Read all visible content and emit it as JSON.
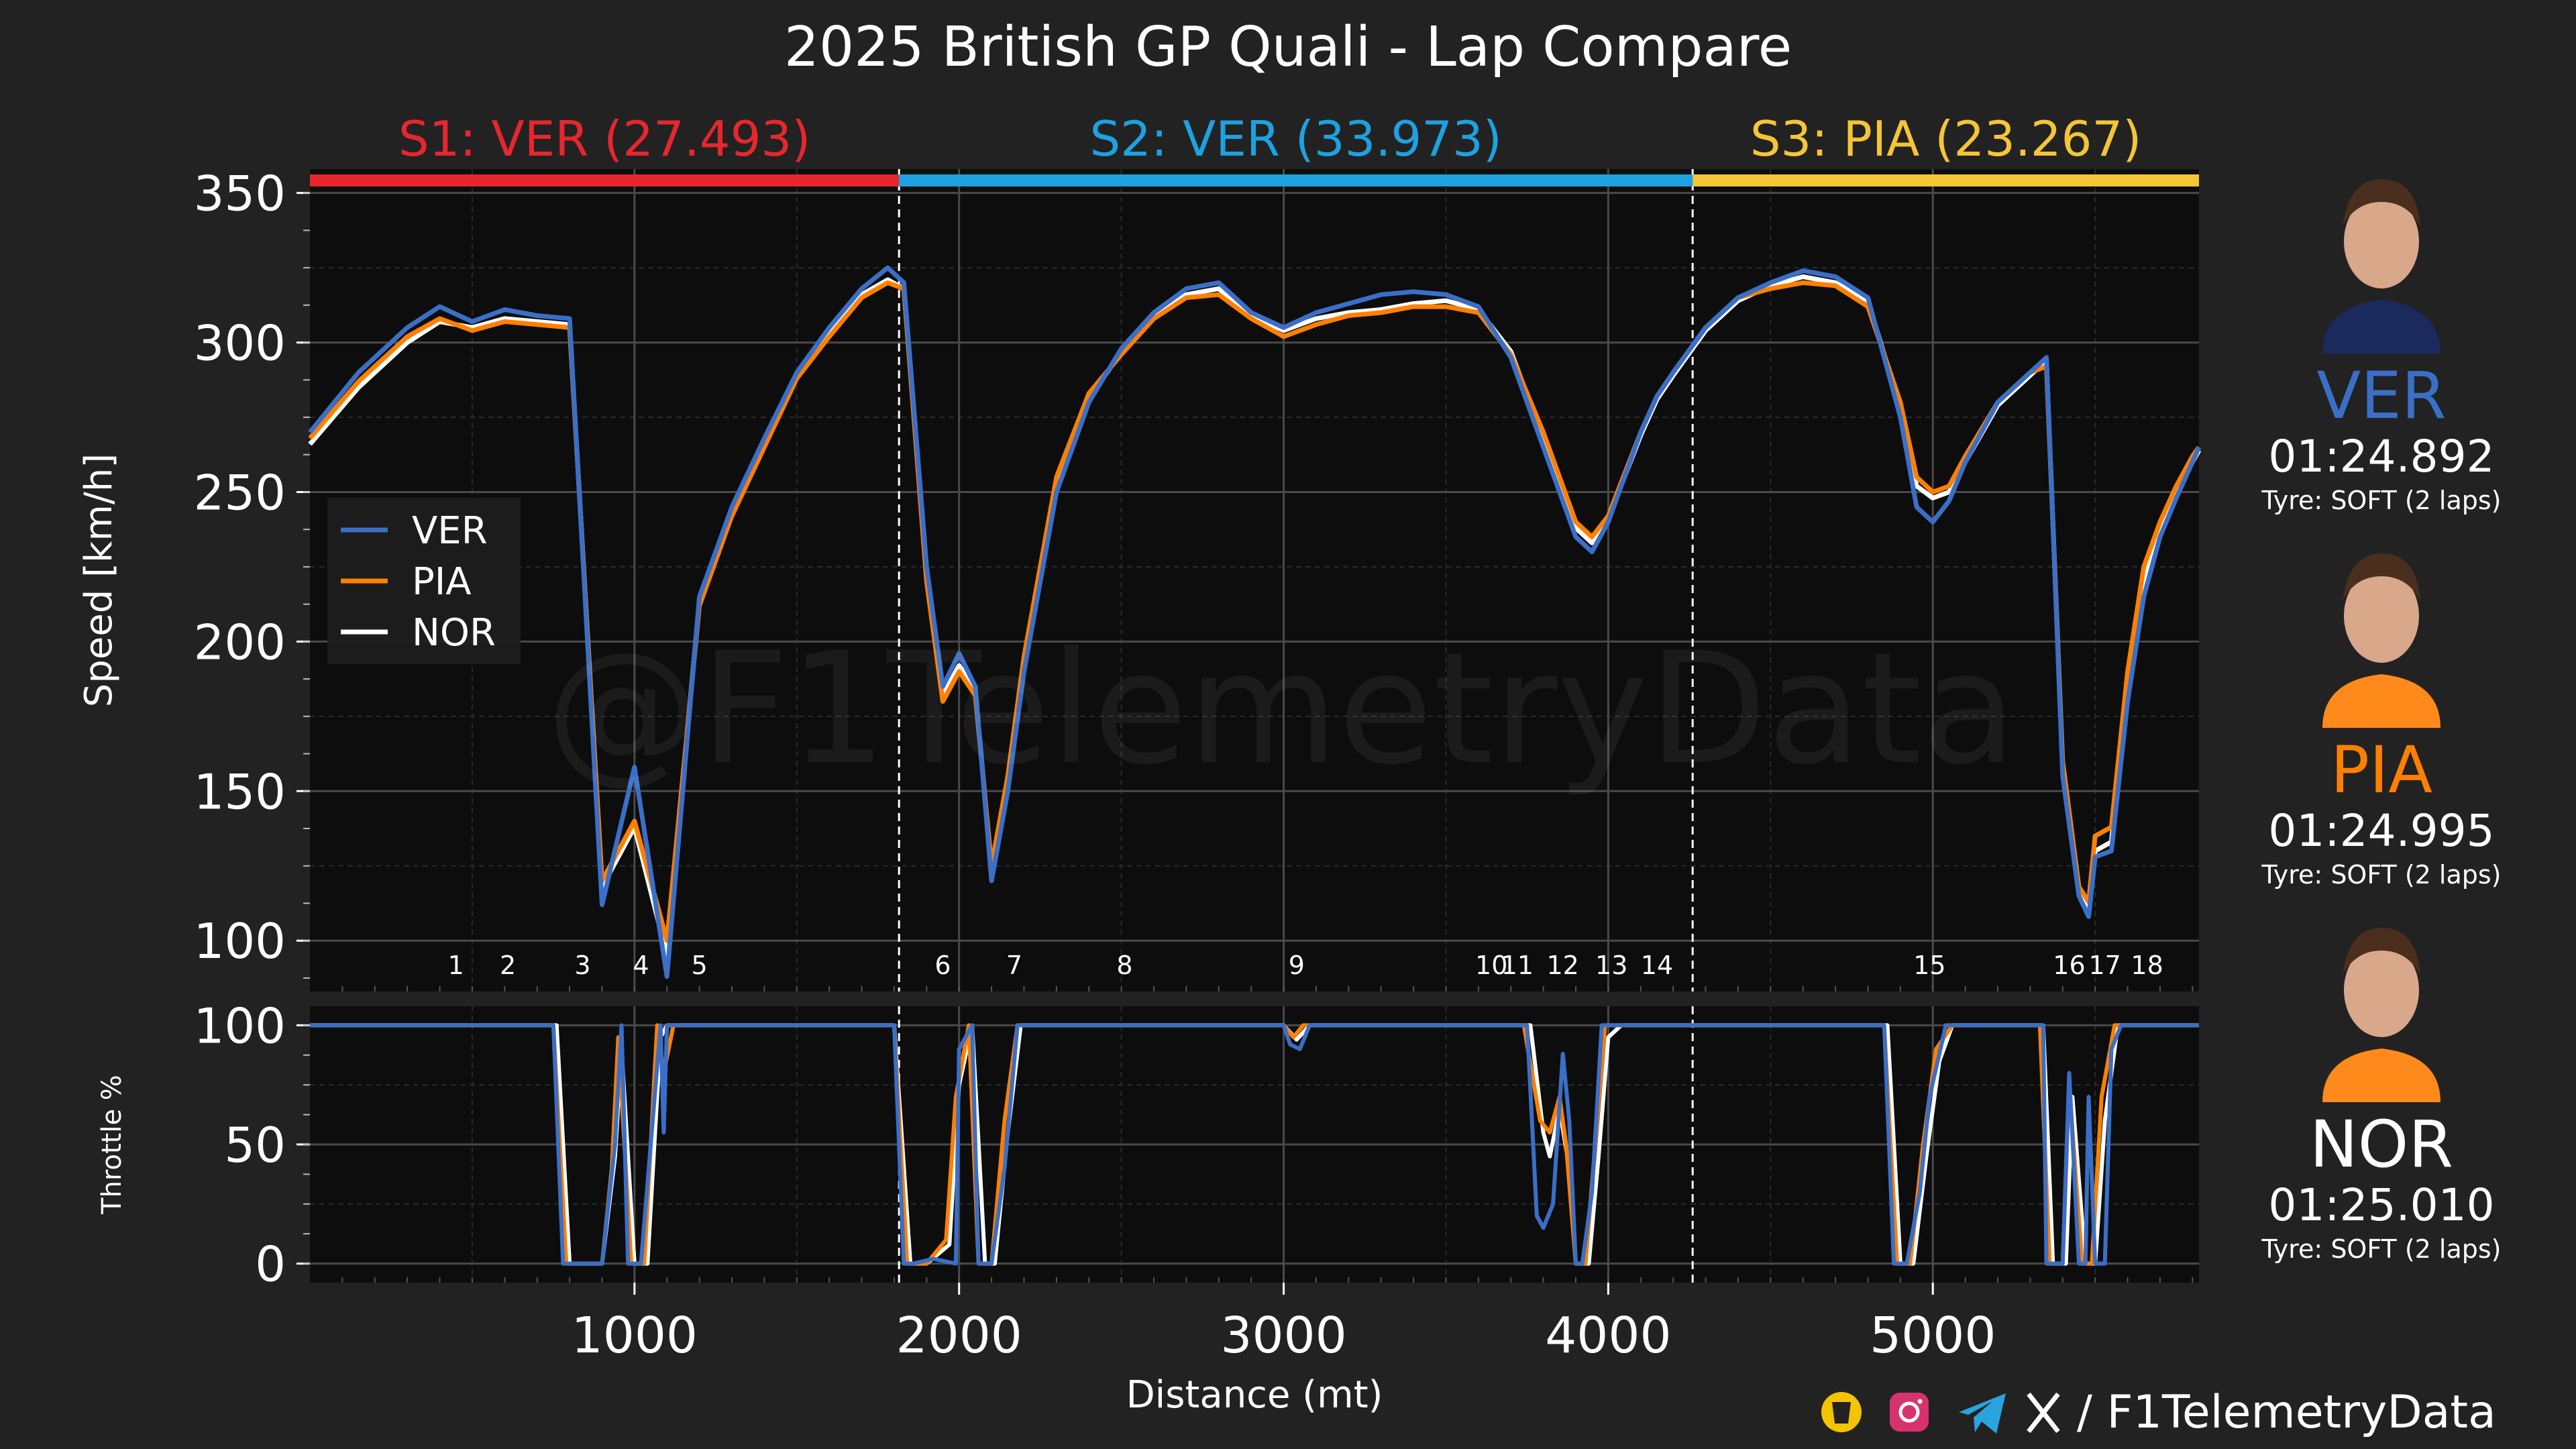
{
  "title": "2025 British GP Quali - Lap Compare",
  "sectors": [
    {
      "label": "S1: VER (27.493)",
      "color": "#e8262e",
      "start": 0,
      "end": 1815
    },
    {
      "label": "S2: VER (33.973)",
      "color": "#1da1e0",
      "start": 1815,
      "end": 4260
    },
    {
      "label": "S3: PIA (23.267)",
      "color": "#f5c537",
      "start": 4260,
      "end": 5820
    }
  ],
  "drivers": [
    {
      "code": "VER",
      "lap_time": "01:24.892",
      "tyre": "Tyre: SOFT (2 laps)",
      "color": "#3a6fc8",
      "photo": "driver-ver"
    },
    {
      "code": "PIA",
      "lap_time": "01:24.995",
      "tyre": "Tyre: SOFT (2 laps)",
      "color": "#ff8000",
      "photo": "driver-pia"
    },
    {
      "code": "NOR",
      "lap_time": "01:25.010",
      "tyre": "Tyre: SOFT (2 laps)",
      "color": "#ffffff",
      "photo": "driver-nor"
    }
  ],
  "watermark": "@F1TelemetryData",
  "footer": {
    "handle": "/ F1TelemetryData",
    "icons": [
      "coffee-icon",
      "instagram-icon",
      "telegram-icon",
      "x-icon"
    ]
  },
  "chart_data": [
    {
      "type": "line",
      "ylabel": "Speed [km/h]",
      "xlim": [
        0,
        5820
      ],
      "ylim": [
        83,
        358
      ],
      "yticks": [
        100,
        150,
        200,
        250,
        300,
        350
      ],
      "legend": "left-middle",
      "corners": [
        {
          "label": "1",
          "x": 450
        },
        {
          "label": "2",
          "x": 610
        },
        {
          "label": "3",
          "x": 840
        },
        {
          "label": "4",
          "x": 1020
        },
        {
          "label": "5",
          "x": 1200
        },
        {
          "label": "6",
          "x": 1950
        },
        {
          "label": "7",
          "x": 2170
        },
        {
          "label": "8",
          "x": 2510
        },
        {
          "label": "9",
          "x": 3040
        },
        {
          "label": "10",
          "x": 3640
        },
        {
          "label": "11",
          "x": 3720
        },
        {
          "label": "12",
          "x": 3860
        },
        {
          "label": "13",
          "x": 4010
        },
        {
          "label": "14",
          "x": 4150
        },
        {
          "label": "15",
          "x": 4990
        },
        {
          "label": "16",
          "x": 5420
        },
        {
          "label": "17",
          "x": 5530
        },
        {
          "label": "18",
          "x": 5660
        }
      ],
      "series": [
        {
          "name": "VER",
          "color": "#3a6fc8",
          "x": [
            0,
            150,
            300,
            400,
            500,
            600,
            700,
            800,
            900,
            1000,
            1100,
            1200,
            1300,
            1400,
            1500,
            1600,
            1700,
            1780,
            1830,
            1900,
            1950,
            2000,
            2050,
            2100,
            2150,
            2200,
            2300,
            2400,
            2500,
            2600,
            2700,
            2800,
            2900,
            3000,
            3100,
            3200,
            3300,
            3400,
            3500,
            3600,
            3700,
            3800,
            3850,
            3900,
            3950,
            4000,
            4050,
            4100,
            4150,
            4200,
            4300,
            4400,
            4500,
            4600,
            4700,
            4800,
            4900,
            4950,
            5000,
            5050,
            5100,
            5200,
            5300,
            5350,
            5400,
            5450,
            5480,
            5500,
            5550,
            5600,
            5650,
            5700,
            5750,
            5800,
            5820
          ],
          "y": [
            270,
            290,
            305,
            312,
            307,
            311,
            309,
            308,
            112,
            158,
            88,
            215,
            245,
            268,
            290,
            305,
            318,
            325,
            320,
            225,
            185,
            196,
            185,
            120,
            150,
            190,
            250,
            280,
            298,
            310,
            318,
            320,
            310,
            305,
            310,
            313,
            316,
            317,
            316,
            312,
            295,
            265,
            250,
            235,
            230,
            240,
            255,
            270,
            282,
            290,
            305,
            315,
            320,
            324,
            322,
            315,
            275,
            245,
            240,
            247,
            260,
            280,
            290,
            295,
            155,
            115,
            108,
            128,
            130,
            180,
            215,
            235,
            248,
            260,
            265
          ]
        },
        {
          "name": "PIA",
          "color": "#ff8000",
          "x": [
            0,
            150,
            300,
            400,
            500,
            600,
            700,
            800,
            900,
            1000,
            1100,
            1200,
            1300,
            1400,
            1500,
            1600,
            1700,
            1780,
            1830,
            1900,
            1950,
            2000,
            2050,
            2100,
            2150,
            2200,
            2300,
            2400,
            2500,
            2600,
            2700,
            2800,
            2900,
            3000,
            3100,
            3200,
            3300,
            3400,
            3500,
            3600,
            3700,
            3800,
            3850,
            3900,
            3950,
            4000,
            4050,
            4100,
            4150,
            4200,
            4300,
            4400,
            4500,
            4600,
            4700,
            4800,
            4900,
            4950,
            5000,
            5050,
            5100,
            5200,
            5300,
            5350,
            5400,
            5450,
            5480,
            5500,
            5550,
            5600,
            5650,
            5700,
            5750,
            5800,
            5820
          ],
          "y": [
            268,
            287,
            302,
            308,
            304,
            307,
            306,
            305,
            120,
            140,
            100,
            212,
            242,
            265,
            288,
            302,
            315,
            320,
            318,
            220,
            180,
            190,
            182,
            125,
            155,
            195,
            255,
            283,
            296,
            308,
            315,
            316,
            308,
            302,
            306,
            309,
            310,
            312,
            312,
            310,
            296,
            270,
            255,
            240,
            235,
            242,
            256,
            270,
            282,
            290,
            305,
            315,
            318,
            320,
            319,
            312,
            280,
            255,
            250,
            252,
            262,
            280,
            290,
            292,
            160,
            118,
            113,
            135,
            138,
            190,
            225,
            240,
            252,
            262,
            265
          ]
        },
        {
          "name": "NOR",
          "color": "#ffffff",
          "x": [
            0,
            150,
            300,
            400,
            500,
            600,
            700,
            800,
            900,
            1000,
            1100,
            1200,
            1300,
            1400,
            1500,
            1600,
            1700,
            1780,
            1830,
            1900,
            1950,
            2000,
            2050,
            2100,
            2150,
            2200,
            2300,
            2400,
            2500,
            2600,
            2700,
            2800,
            2900,
            3000,
            3100,
            3200,
            3300,
            3400,
            3500,
            3600,
            3700,
            3800,
            3850,
            3900,
            3950,
            4000,
            4050,
            4100,
            4150,
            4200,
            4300,
            4400,
            4500,
            4600,
            4700,
            4800,
            4900,
            4950,
            5000,
            5050,
            5100,
            5200,
            5300,
            5350,
            5400,
            5450,
            5480,
            5500,
            5550,
            5600,
            5650,
            5700,
            5750,
            5800,
            5820
          ],
          "y": [
            266,
            285,
            300,
            307,
            305,
            308,
            307,
            306,
            118,
            138,
            95,
            214,
            243,
            266,
            289,
            303,
            316,
            321,
            318,
            222,
            182,
            192,
            184,
            123,
            152,
            192,
            252,
            281,
            297,
            309,
            316,
            318,
            309,
            304,
            308,
            310,
            311,
            313,
            314,
            311,
            297,
            268,
            254,
            238,
            233,
            241,
            255,
            269,
            281,
            289,
            304,
            314,
            319,
            322,
            320,
            314,
            278,
            252,
            248,
            250,
            260,
            279,
            289,
            294,
            158,
            117,
            111,
            130,
            133,
            185,
            220,
            238,
            250,
            260,
            264
          ]
        }
      ]
    },
    {
      "type": "line",
      "ylabel": "Throttle %",
      "xlabel": "Distance (mt)",
      "xlim": [
        0,
        5820
      ],
      "ylim": [
        -8,
        108
      ],
      "yticks": [
        0,
        50,
        100
      ],
      "xticks": [
        1000,
        2000,
        3000,
        4000,
        5000
      ],
      "series": [
        {
          "name": "VER",
          "color": "#3a6fc8",
          "x": [
            0,
            750,
            780,
            900,
            940,
            960,
            980,
            1020,
            1080,
            1090,
            1100,
            1120,
            1800,
            1830,
            1860,
            1920,
            1990,
            2000,
            2040,
            2060,
            2100,
            2140,
            2180,
            2220,
            3000,
            3020,
            3050,
            3080,
            3750,
            3780,
            3800,
            3830,
            3860,
            3880,
            3900,
            3920,
            3950,
            3980,
            4000,
            4020,
            4050,
            4850,
            4880,
            4920,
            4960,
            4990,
            5040,
            5060,
            5080,
            5300,
            5340,
            5350,
            5400,
            5420,
            5450,
            5470,
            5480,
            5500,
            5530,
            5550,
            5580,
            5820
          ],
          "y": [
            100,
            100,
            0,
            0,
            50,
            100,
            0,
            0,
            100,
            55,
            100,
            100,
            100,
            0,
            0,
            2,
            0,
            90,
            100,
            0,
            0,
            40,
            100,
            100,
            100,
            92,
            90,
            100,
            100,
            20,
            15,
            25,
            88,
            60,
            0,
            0,
            30,
            100,
            100,
            100,
            100,
            100,
            0,
            0,
            30,
            70,
            100,
            100,
            100,
            100,
            100,
            0,
            0,
            80,
            0,
            0,
            70,
            0,
            0,
            90,
            100,
            100
          ]
        },
        {
          "name": "PIA",
          "color": "#ff8000",
          "x": [
            0,
            750,
            790,
            900,
            930,
            950,
            990,
            1030,
            1070,
            1090,
            1120,
            1800,
            1840,
            1900,
            1960,
            1990,
            2030,
            2060,
            2100,
            2140,
            2180,
            2230,
            3000,
            3030,
            3060,
            3740,
            3790,
            3820,
            3850,
            3870,
            3900,
            3930,
            3960,
            3990,
            4050,
            4850,
            4890,
            4930,
            4970,
            5010,
            5060,
            5300,
            5330,
            5360,
            5400,
            5420,
            5460,
            5490,
            5520,
            5560,
            5600,
            5820
          ],
          "y": [
            100,
            100,
            0,
            0,
            40,
            95,
            0,
            0,
            100,
            80,
            100,
            100,
            0,
            0,
            10,
            70,
            100,
            0,
            0,
            60,
            100,
            100,
            100,
            95,
            100,
            100,
            60,
            55,
            70,
            50,
            0,
            0,
            50,
            100,
            100,
            100,
            0,
            0,
            50,
            90,
            100,
            100,
            100,
            0,
            0,
            75,
            0,
            0,
            70,
            100,
            100,
            100
          ]
        },
        {
          "name": "NOR",
          "color": "#ffffff",
          "x": [
            0,
            760,
            800,
            900,
            940,
            960,
            1000,
            1040,
            1080,
            1100,
            1800,
            1850,
            1900,
            1970,
            2000,
            2040,
            2080,
            2110,
            2150,
            2190,
            2230,
            3000,
            3040,
            3080,
            3760,
            3800,
            3820,
            3850,
            3880,
            3900,
            3940,
            3970,
            4000,
            4040,
            4860,
            4900,
            4940,
            4980,
            5020,
            5060,
            5300,
            5340,
            5370,
            5410,
            5430,
            5470,
            5500,
            5530,
            5570,
            5820
          ],
          "y": [
            100,
            100,
            0,
            0,
            45,
            90,
            0,
            0,
            95,
            100,
            100,
            0,
            0,
            8,
            75,
            100,
            0,
            0,
            55,
            100,
            100,
            100,
            94,
            100,
            100,
            55,
            45,
            65,
            40,
            0,
            0,
            45,
            95,
            100,
            100,
            0,
            0,
            45,
            85,
            100,
            100,
            100,
            0,
            0,
            70,
            0,
            0,
            60,
            100,
            100
          ]
        }
      ]
    }
  ]
}
